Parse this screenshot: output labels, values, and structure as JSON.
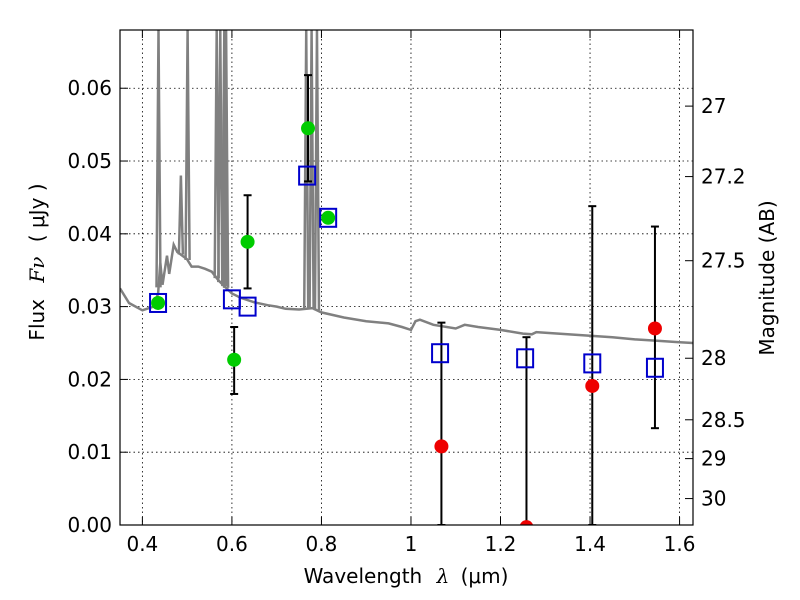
{
  "chart_data": {
    "type": "scatter",
    "xlabel": {
      "prefix": "Wavelength",
      "symbol": "λ",
      "unit": "(μm)"
    },
    "ylabel": {
      "prefix": "Flux",
      "symbol": "Fν",
      "unit": "( μJy )"
    },
    "y2label": "Magnitude (AB)",
    "xlim": [
      0.35,
      1.63
    ],
    "ylim": [
      0.0,
      0.068
    ],
    "grid": true,
    "x_ticks": [
      {
        "value": 0.4,
        "label": "0.4"
      },
      {
        "value": 0.6,
        "label": "0.6"
      },
      {
        "value": 0.8,
        "label": "0.8"
      },
      {
        "value": 1.0,
        "label": "1"
      },
      {
        "value": 1.2,
        "label": "1.2"
      },
      {
        "value": 1.4,
        "label": "1.4"
      },
      {
        "value": 1.6,
        "label": "1.6"
      }
    ],
    "y_ticks": [
      {
        "value": 0.0,
        "label": "0.00"
      },
      {
        "value": 0.01,
        "label": "0.01"
      },
      {
        "value": 0.02,
        "label": "0.02"
      },
      {
        "value": 0.03,
        "label": "0.03"
      },
      {
        "value": 0.04,
        "label": "0.04"
      },
      {
        "value": 0.05,
        "label": "0.05"
      },
      {
        "value": 0.06,
        "label": "0.06"
      }
    ],
    "y2_ticks": [
      {
        "value": 27.0,
        "label": "27"
      },
      {
        "value": 27.2,
        "label": "27.2"
      },
      {
        "value": 27.5,
        "label": "27.5"
      },
      {
        "value": 28.0,
        "label": "28"
      },
      {
        "value": 28.5,
        "label": "28.5"
      },
      {
        "value": 29.0,
        "label": "29"
      },
      {
        "value": 30.0,
        "label": "30"
      }
    ],
    "sed_model": {
      "color": "#808080",
      "points": [
        [
          0.35,
          0.0325
        ],
        [
          0.37,
          0.0305
        ],
        [
          0.4,
          0.0295
        ],
        [
          0.425,
          0.03
        ],
        [
          0.435,
          0.0318
        ],
        [
          0.44,
          0.036
        ],
        [
          0.445,
          0.033
        ],
        [
          0.455,
          0.037
        ],
        [
          0.46,
          0.0345
        ],
        [
          0.47,
          0.0385
        ],
        [
          0.478,
          0.0375
        ],
        [
          0.485,
          0.0372
        ],
        [
          0.5,
          0.0365
        ],
        [
          0.51,
          0.0355
        ],
        [
          0.525,
          0.0355
        ],
        [
          0.54,
          0.0352
        ],
        [
          0.555,
          0.0348
        ],
        [
          0.57,
          0.0336
        ],
        [
          0.58,
          0.033
        ],
        [
          0.6,
          0.0318
        ],
        [
          0.62,
          0.0312
        ],
        [
          0.65,
          0.0306
        ],
        [
          0.68,
          0.0302
        ],
        [
          0.7,
          0.03
        ],
        [
          0.72,
          0.0297
        ],
        [
          0.75,
          0.0296
        ],
        [
          0.78,
          0.0298
        ],
        [
          0.8,
          0.0292
        ],
        [
          0.85,
          0.0285
        ],
        [
          0.9,
          0.028
        ],
        [
          0.95,
          0.0277
        ],
        [
          0.98,
          0.0272
        ],
        [
          1.0,
          0.0268
        ],
        [
          1.01,
          0.028
        ],
        [
          1.02,
          0.0282
        ],
        [
          1.05,
          0.0275
        ],
        [
          1.1,
          0.027
        ],
        [
          1.12,
          0.0275
        ],
        [
          1.15,
          0.0272
        ],
        [
          1.2,
          0.0268
        ],
        [
          1.25,
          0.0263
        ],
        [
          1.27,
          0.0262
        ],
        [
          1.28,
          0.0265
        ],
        [
          1.3,
          0.0264
        ],
        [
          1.35,
          0.0262
        ],
        [
          1.4,
          0.026
        ],
        [
          1.45,
          0.0258
        ],
        [
          1.5,
          0.0255
        ],
        [
          1.55,
          0.0253
        ],
        [
          1.6,
          0.0251
        ],
        [
          1.63,
          0.025
        ]
      ],
      "emission_lines": [
        {
          "x": 0.436,
          "peak": 0.068
        },
        {
          "x": 0.486,
          "peak": 0.048
        },
        {
          "x": 0.501,
          "peak": 0.068
        },
        {
          "x": 0.566,
          "peak": 0.068
        },
        {
          "x": 0.574,
          "peak": 0.068
        },
        {
          "x": 0.583,
          "peak": 0.068
        },
        {
          "x": 0.587,
          "peak": 0.068
        },
        {
          "x": 0.766,
          "peak": 0.068
        },
        {
          "x": 0.778,
          "peak": 0.068
        },
        {
          "x": 0.79,
          "peak": 0.068
        }
      ]
    },
    "model_fluxes": {
      "marker": "open-square",
      "color": "#0000cc",
      "points": [
        {
          "x": 0.435,
          "y": 0.0305
        },
        {
          "x": 0.6,
          "y": 0.031
        },
        {
          "x": 0.635,
          "y": 0.03
        },
        {
          "x": 0.768,
          "y": 0.048
        },
        {
          "x": 0.815,
          "y": 0.0422
        },
        {
          "x": 1.065,
          "y": 0.0236
        },
        {
          "x": 1.255,
          "y": 0.0229
        },
        {
          "x": 1.405,
          "y": 0.0222
        },
        {
          "x": 1.545,
          "y": 0.0216
        }
      ]
    },
    "detections": {
      "color": "#00cc00",
      "points": [
        {
          "x": 0.435,
          "y": 0.0305,
          "err": null
        },
        {
          "x": 0.605,
          "y": 0.0227,
          "err": [
            0.018,
            0.0272
          ]
        },
        {
          "x": 0.635,
          "y": 0.0389,
          "err": [
            0.0325,
            0.0453
          ]
        },
        {
          "x": 0.77,
          "y": 0.0545,
          "err": [
            0.0472,
            0.0618
          ]
        },
        {
          "x": 0.815,
          "y": 0.0422,
          "err": null
        }
      ]
    },
    "non_detections": {
      "color": "#ee0000",
      "points": [
        {
          "x": 1.068,
          "y": 0.0108,
          "err": [
            0.0,
            0.0278
          ]
        },
        {
          "x": 1.258,
          "y": -0.0003,
          "err": [
            0.0,
            0.0258
          ]
        },
        {
          "x": 1.405,
          "y": 0.0191,
          "err": [
            0.0,
            0.0438
          ]
        },
        {
          "x": 1.545,
          "y": 0.027,
          "err": [
            0.0133,
            0.041
          ]
        }
      ]
    }
  }
}
